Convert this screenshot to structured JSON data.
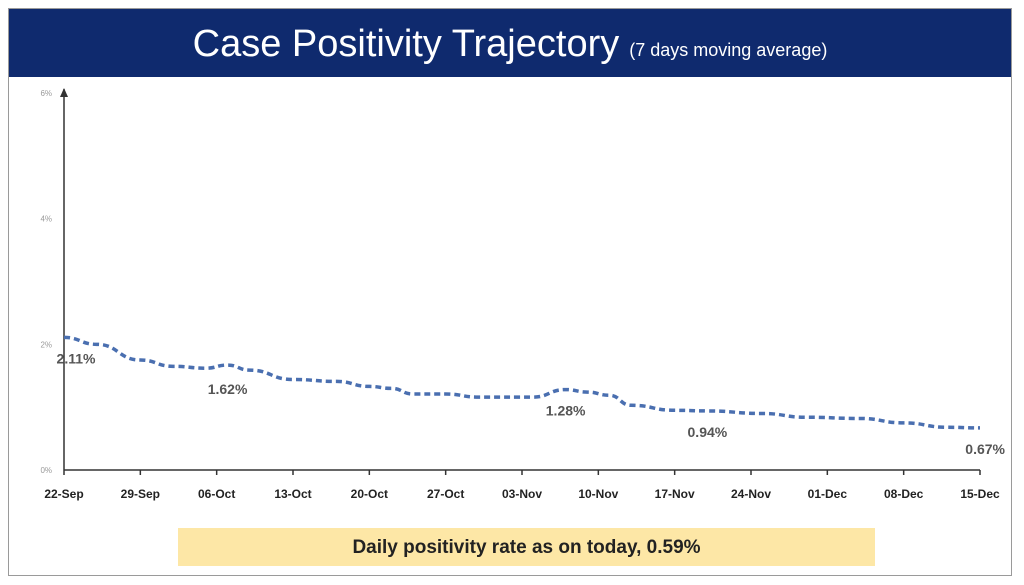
{
  "chart_data": {
    "type": "line",
    "title": "Case Positivity Trajectory",
    "subtitle": "(7 days moving average)",
    "xlabel": "",
    "ylabel": "",
    "ylim": [
      0,
      6
    ],
    "y_ticks": [
      "0%",
      "2%",
      "4%",
      "6%"
    ],
    "y_tick_values": [
      0,
      2,
      4,
      6
    ],
    "x_ticks": [
      "22-Sep",
      "29-Sep",
      "06-Oct",
      "13-Oct",
      "20-Oct",
      "27-Oct",
      "03-Nov",
      "10-Nov",
      "17-Nov",
      "24-Nov",
      "01-Dec",
      "08-Dec",
      "15-Dec"
    ],
    "xlim_days": [
      0,
      84
    ],
    "grid": false,
    "series": [
      {
        "name": "Case positivity (7-day moving average)",
        "color": "#4a6fb0",
        "x_days": [
          0,
          3,
          7,
          10,
          13,
          15,
          17,
          21,
          25,
          28,
          30,
          32,
          35,
          38,
          43,
          46,
          48,
          50,
          52,
          56,
          59,
          64,
          68,
          73,
          77,
          81,
          84
        ],
        "values": [
          2.11,
          2.0,
          1.75,
          1.65,
          1.62,
          1.67,
          1.59,
          1.44,
          1.41,
          1.33,
          1.3,
          1.21,
          1.21,
          1.16,
          1.16,
          1.28,
          1.24,
          1.19,
          1.03,
          0.95,
          0.94,
          0.9,
          0.84,
          0.82,
          0.75,
          0.68,
          0.67
        ]
      }
    ],
    "annotations": [
      {
        "text": "2.11%",
        "x_day": 0,
        "value": 2.11
      },
      {
        "text": "1.62%",
        "x_day": 15,
        "value": 1.62
      },
      {
        "text": "1.28%",
        "x_day": 46,
        "value": 1.28
      },
      {
        "text": "0.94%",
        "x_day": 59,
        "value": 0.94
      },
      {
        "text": "0.67%",
        "x_day": 84,
        "value": 0.67
      }
    ]
  },
  "banner": {
    "text": "Daily positivity rate as on today, 0.59%"
  }
}
